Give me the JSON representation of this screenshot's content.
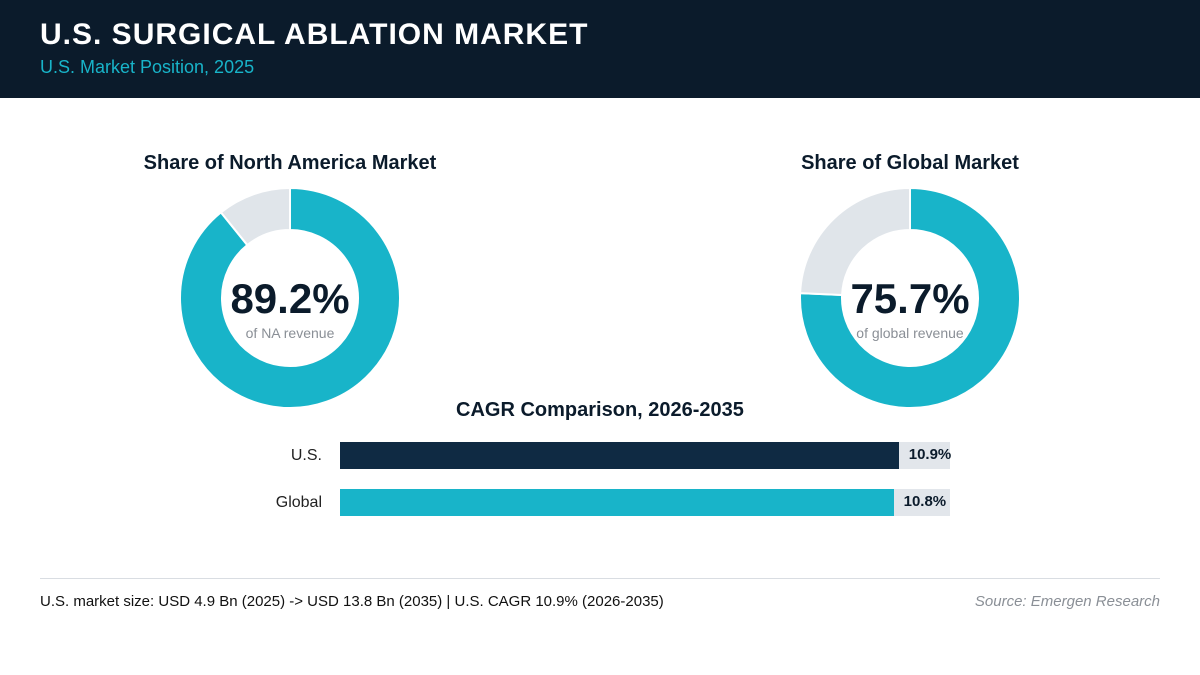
{
  "header": {
    "title": "U.S. SURGICAL ABLATION MARKET",
    "subtitle": "U.S. Market Position, 2025"
  },
  "colors": {
    "header_bg": "#0b1b2b",
    "accent": "#18b4c9",
    "dark_bar": "#0f2a43",
    "remainder": "#e0e5ea"
  },
  "chart_data": [
    {
      "type": "pie",
      "title": "Share of North America Market",
      "center_value": "89.2%",
      "center_label": "of NA revenue",
      "values": [
        89.2,
        10.8
      ]
    },
    {
      "type": "pie",
      "title": "Share of Global Market",
      "center_value": "75.7%",
      "center_label": "of global revenue",
      "values": [
        75.7,
        24.3
      ]
    },
    {
      "type": "bar",
      "title": "CAGR Comparison, 2026-2035",
      "categories": [
        "U.S.",
        "Global"
      ],
      "values": [
        10.9,
        10.8
      ],
      "value_labels": [
        "10.9%",
        "10.8%"
      ],
      "xlim": [
        0,
        11.9
      ]
    }
  ],
  "footer": {
    "note": "U.S. market size: USD 4.9 Bn (2025) -> USD 13.8 Bn (2035)  |  U.S. CAGR 10.9% (2026-2035)",
    "source": "Source: Emergen Research"
  }
}
